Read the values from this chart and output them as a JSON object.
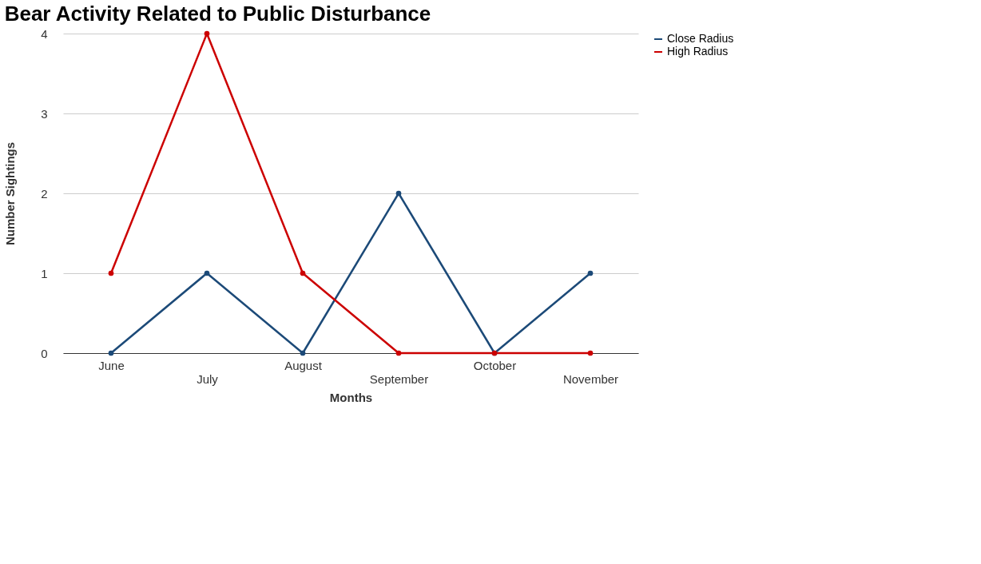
{
  "chart_data": {
    "type": "line",
    "title": "Bear Activity Related to Public Disturbance",
    "xlabel": "Months",
    "ylabel": "Number Sightings",
    "categories": [
      "June",
      "July",
      "August",
      "September",
      "October",
      "November"
    ],
    "series": [
      {
        "name": "Close Radius",
        "color": "#1c4a78",
        "values": [
          0,
          1,
          0,
          2,
          0,
          1
        ]
      },
      {
        "name": "High Radius",
        "color": "#cc0000",
        "values": [
          1,
          4,
          1,
          0,
          0,
          0
        ]
      }
    ],
    "ylim": [
      0,
      4
    ],
    "yticks": [
      0,
      1,
      2,
      3,
      4
    ],
    "grid": "y",
    "legend": "top right",
    "marker": "circle",
    "line_style": "solid"
  }
}
